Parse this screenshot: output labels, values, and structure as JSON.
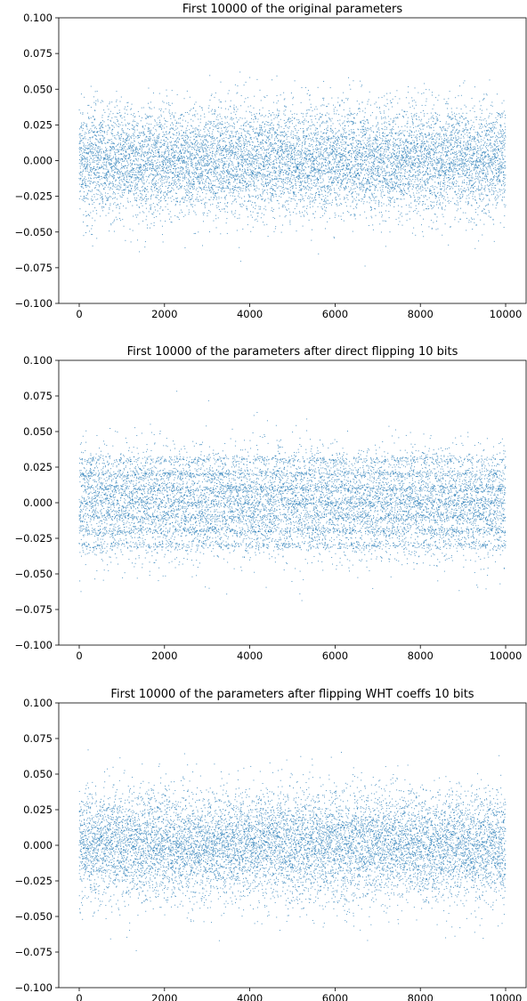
{
  "chart_data": [
    {
      "type": "scatter",
      "title": "First 10000 of the original parameters",
      "xlim": [
        -480,
        10480
      ],
      "ylim": [
        -0.1,
        0.1
      ],
      "xticks": [
        0,
        2000,
        4000,
        6000,
        8000,
        10000
      ],
      "xtick_labels": [
        "0",
        "2000",
        "4000",
        "6000",
        "8000",
        "10000"
      ],
      "yticks": [
        -0.1,
        -0.075,
        -0.05,
        -0.025,
        0,
        0.025,
        0.05,
        0.075,
        0.1
      ],
      "ytick_labels": [
        "−0.100",
        "−0.075",
        "−0.050",
        "−0.025",
        "0.000",
        "0.025",
        "0.050",
        "0.075",
        "0.100"
      ],
      "marker_color": "#1f77b4",
      "grid": false,
      "series": [
        {
          "x_range": [
            0,
            9999
          ],
          "count": 10000,
          "distribution": "roughly normal around 0, std approx 0.02, values clipped to [-0.1, 0.1]"
        }
      ]
    },
    {
      "type": "scatter",
      "title": "First 10000 of the parameters after direct flipping 10 bits",
      "xlim": [
        -480,
        10480
      ],
      "ylim": [
        -0.1,
        0.1
      ],
      "xticks": [
        0,
        2000,
        4000,
        6000,
        8000,
        10000
      ],
      "xtick_labels": [
        "0",
        "2000",
        "4000",
        "6000",
        "8000",
        "10000"
      ],
      "yticks": [
        -0.1,
        -0.075,
        -0.05,
        -0.025,
        0,
        0.025,
        0.05,
        0.075,
        0.1
      ],
      "ytick_labels": [
        "−0.100",
        "−0.075",
        "−0.050",
        "−0.025",
        "0.000",
        "0.025",
        "0.050",
        "0.075",
        "0.100"
      ],
      "marker_color": "#1f77b4",
      "grid": false,
      "series": [
        {
          "x_range": [
            0,
            9999
          ],
          "count": 10000,
          "distribution": "roughly normal around 0, std approx 0.02, visible horizontal banding, clipped to [-0.1, 0.1]"
        }
      ]
    },
    {
      "type": "scatter",
      "title": "First 10000 of the parameters after flipping WHT coeffs 10 bits",
      "xlim": [
        -480,
        10480
      ],
      "ylim": [
        -0.1,
        0.1
      ],
      "xticks": [
        0,
        2000,
        4000,
        6000,
        8000,
        10000
      ],
      "xtick_labels": [
        "0",
        "2000",
        "4000",
        "6000",
        "8000",
        "10000"
      ],
      "yticks": [
        -0.1,
        -0.075,
        -0.05,
        -0.025,
        0,
        0.025,
        0.05,
        0.075,
        0.1
      ],
      "ytick_labels": [
        "−0.100",
        "−0.075",
        "−0.050",
        "−0.025",
        "0.000",
        "0.025",
        "0.050",
        "0.075",
        "0.100"
      ],
      "marker_color": "#1f77b4",
      "grid": false,
      "series": [
        {
          "x_range": [
            0,
            9999
          ],
          "count": 10000,
          "distribution": "roughly normal around 0, std approx 0.02, values clipped to [-0.1, 0.1]"
        }
      ]
    }
  ]
}
